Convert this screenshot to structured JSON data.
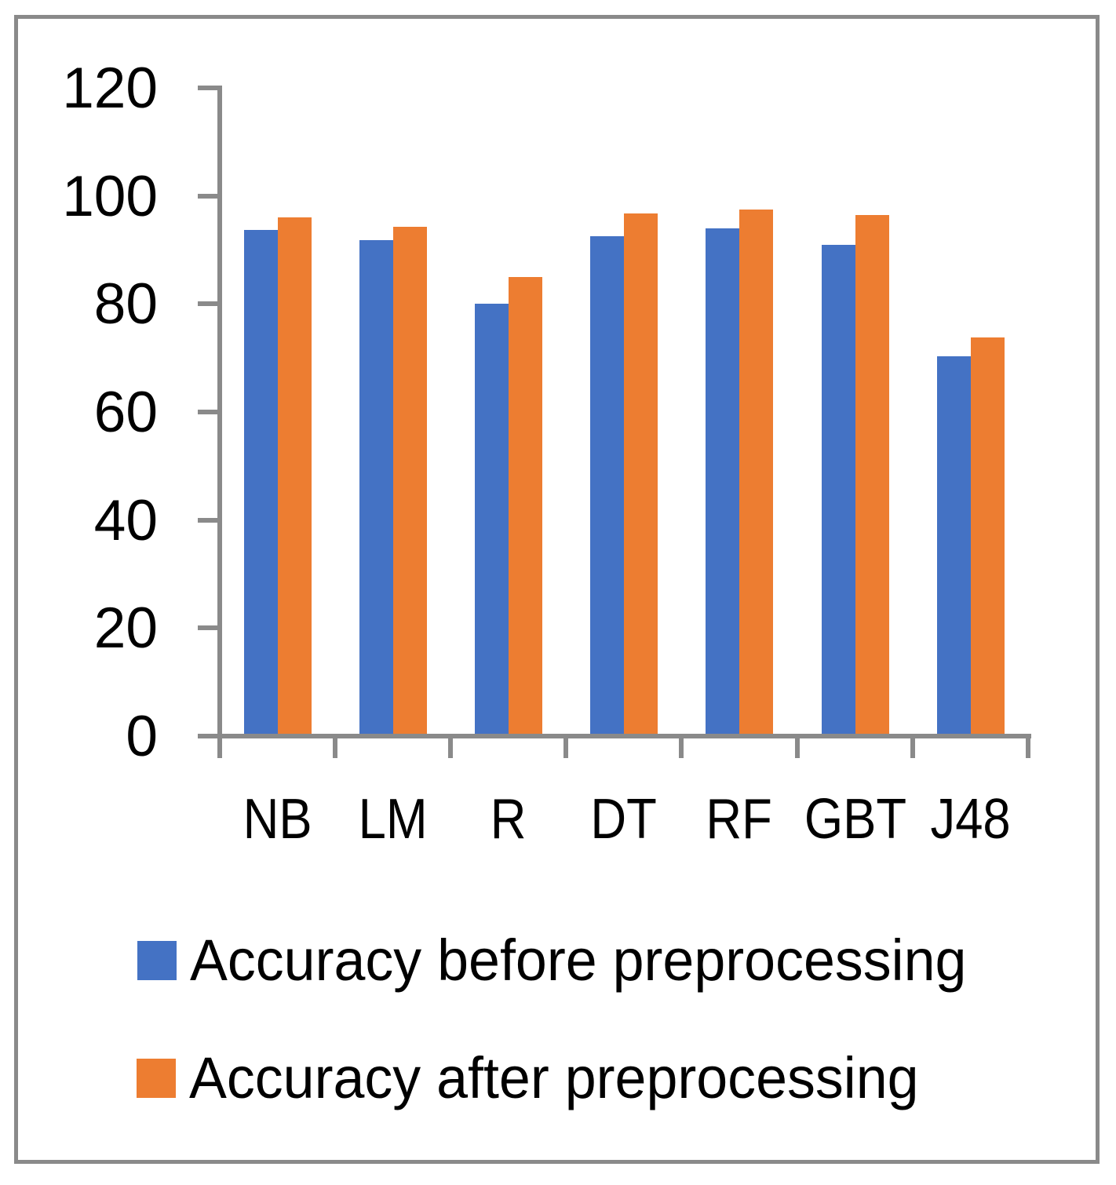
{
  "figure": {
    "background": "#ffffff",
    "frame_color": "#8a8a8a",
    "axis_color": "#8a8a8a",
    "text_color": "#000000"
  },
  "chart_data": {
    "type": "bar",
    "title": "",
    "xlabel": "",
    "ylabel": "",
    "categories": [
      "NB",
      "LM",
      "R",
      "DT",
      "RF",
      "GBT",
      "J48"
    ],
    "series": [
      {
        "name": "Accuracy before preprocessing",
        "color": "#4472C4",
        "values": [
          93.7,
          91.8,
          80,
          92.5,
          94,
          91,
          70.3
        ]
      },
      {
        "name": "Accuracy after preprocessing",
        "color": "#ED7D31",
        "values": [
          96.1,
          94.3,
          85,
          96.8,
          97.5,
          96.5,
          73.8
        ]
      }
    ],
    "ylim": [
      0,
      120
    ],
    "y_ticks": [
      0,
      20,
      40,
      60,
      80,
      100,
      120
    ],
    "grid": false,
    "legend_position": "bottom-left"
  }
}
